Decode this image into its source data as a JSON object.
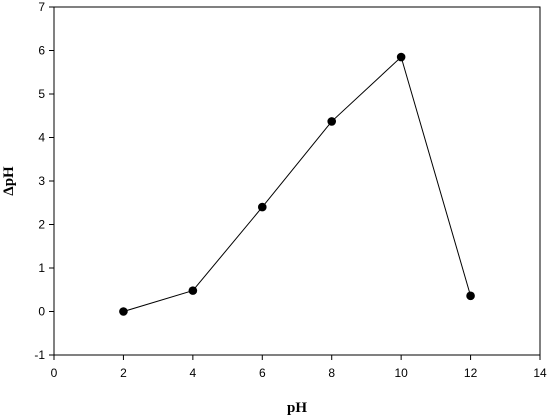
{
  "chart_data": {
    "type": "line",
    "title": "",
    "xlabel": "pH",
    "ylabel": "ΔpH",
    "xlim": [
      0,
      14
    ],
    "ylim": [
      -1,
      7
    ],
    "x_ticks": [
      0,
      2,
      4,
      6,
      8,
      10,
      12,
      14
    ],
    "y_ticks": [
      -1,
      0,
      1,
      2,
      3,
      4,
      5,
      6,
      7
    ],
    "grid": false,
    "legend": "none",
    "series": [
      {
        "x": [
          2,
          4,
          6,
          8,
          10,
          12
        ],
        "y": [
          0.0,
          0.48,
          2.4,
          4.37,
          5.85,
          0.36
        ],
        "marker": "filled-circle",
        "color": "#000000"
      }
    ]
  }
}
